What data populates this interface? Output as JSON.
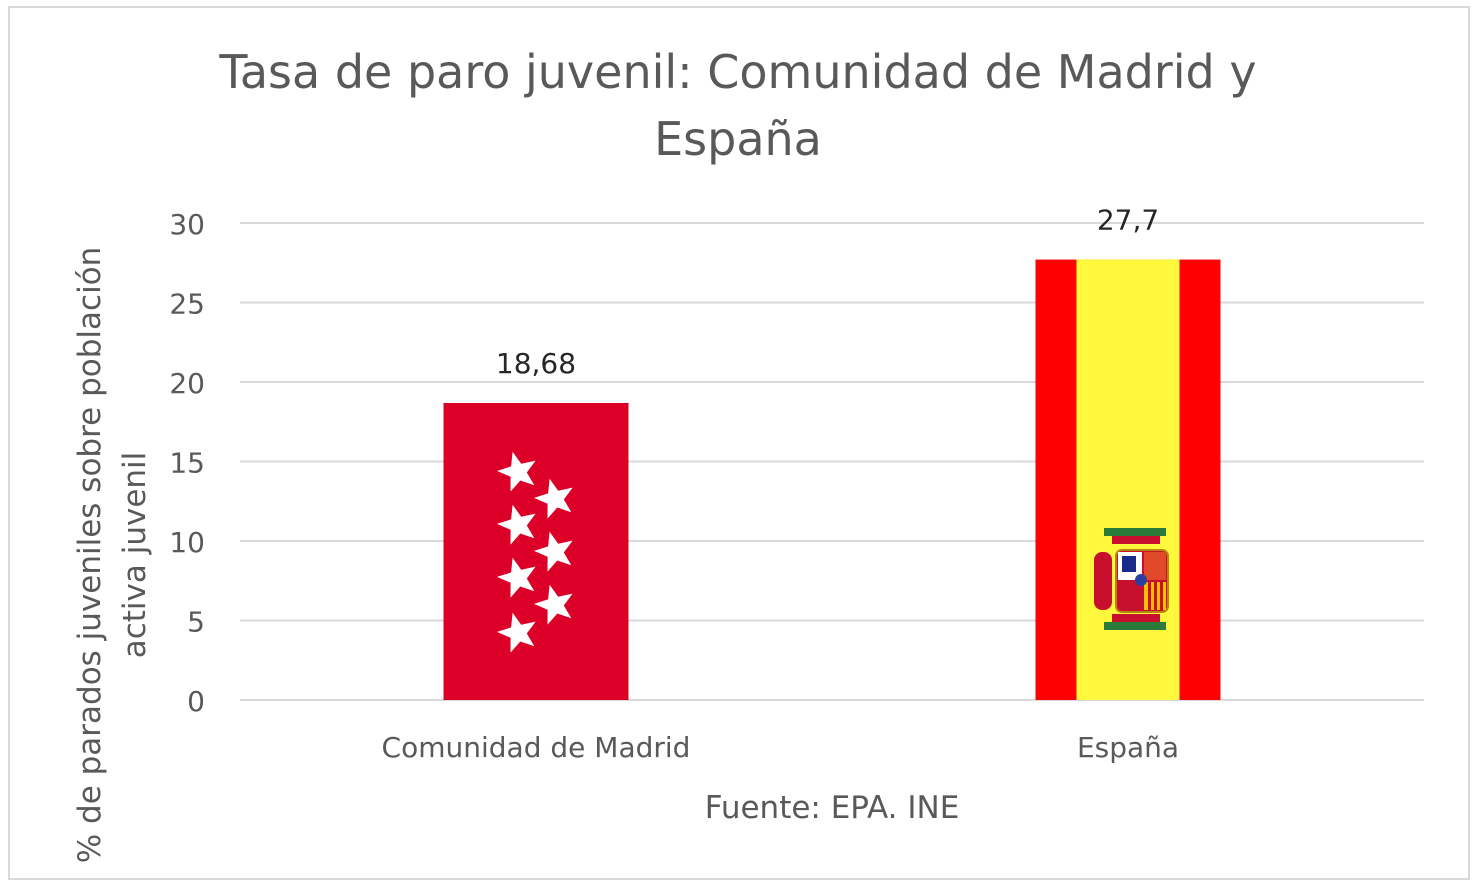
{
  "chart_data": {
    "type": "bar",
    "title_lines": [
      "Tasa de paro juvenil: Comunidad de Madrid y",
      "España"
    ],
    "ylabel_lines": [
      "% de parados juveniles sobre población",
      "activa juvenil"
    ],
    "xlabel": "Fuente: EPA. INE",
    "categories": [
      "Comunidad de Madrid",
      "España"
    ],
    "values": [
      18.68,
      27.7
    ],
    "data_labels": [
      "18,68",
      "27,7"
    ],
    "ylim": [
      0,
      30
    ],
    "yticks": [
      0,
      5,
      10,
      15,
      20,
      25,
      30
    ],
    "grid": true,
    "bar_fills": [
      "flag-comunidad-de-madrid",
      "flag-espana"
    ],
    "colors": {
      "madrid_red": "#DC0028",
      "spain_red": "#FF0000",
      "spain_yellow": "#FFF83C",
      "grid": "#D9D9D9",
      "text": "#595959"
    }
  }
}
